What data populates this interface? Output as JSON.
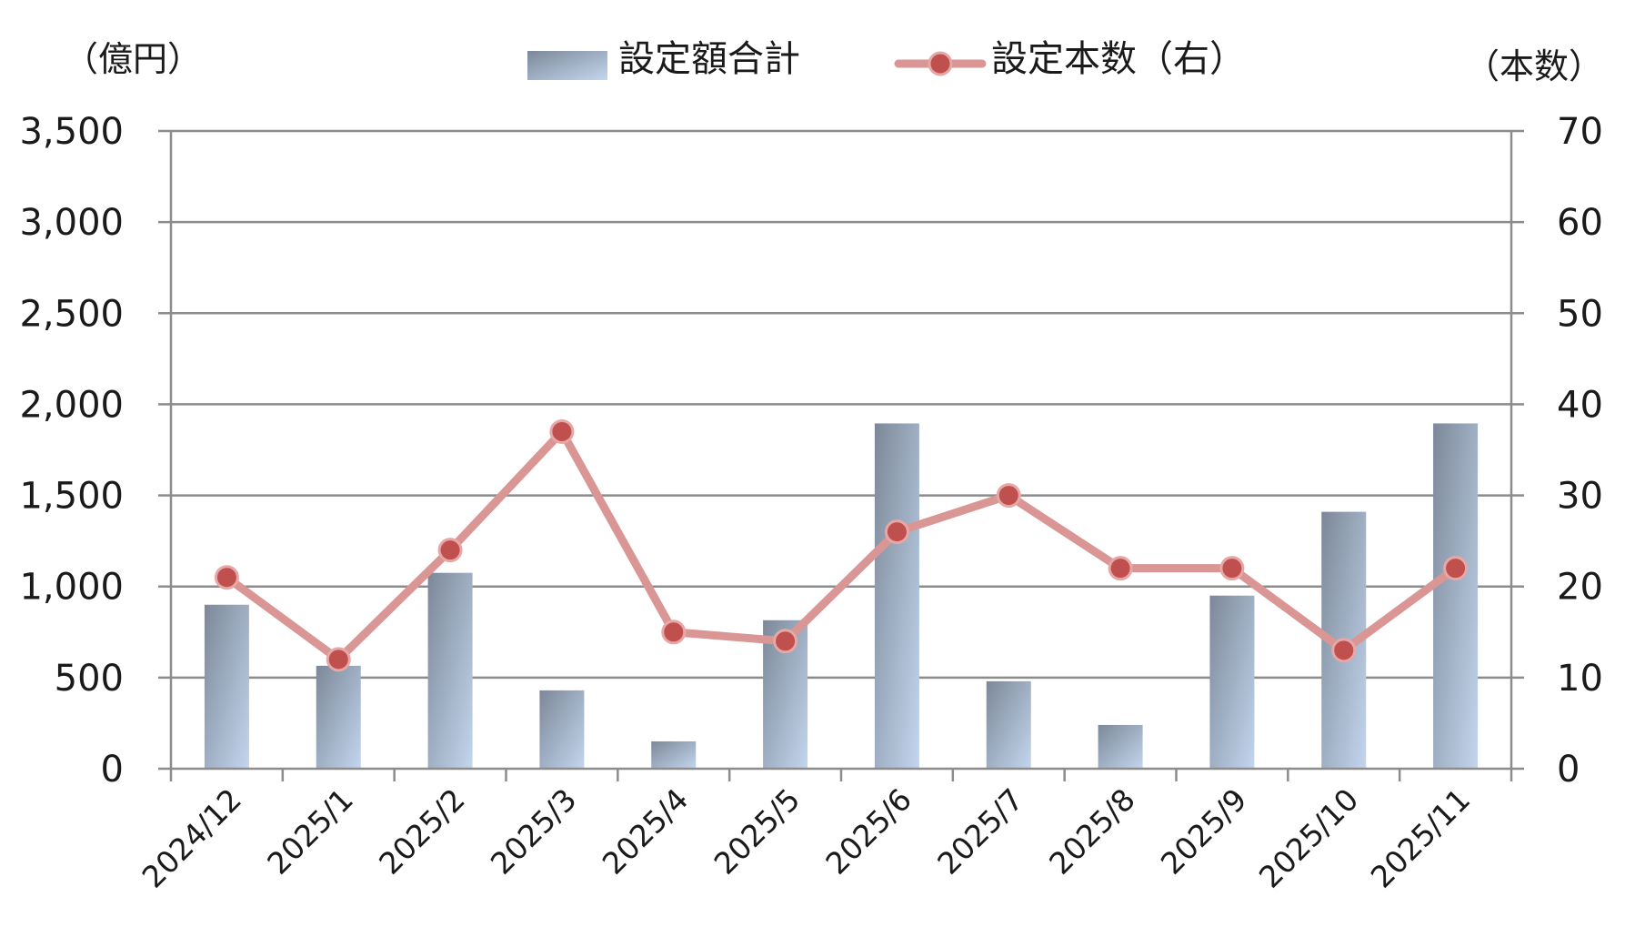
{
  "chart_data": {
    "type": "bar",
    "categories": [
      "2024/12",
      "2025/1",
      "2025/2",
      "2025/3",
      "2025/4",
      "2025/5",
      "2025/6",
      "2025/7",
      "2025/8",
      "2025/9",
      "2025/10",
      "2025/11"
    ],
    "series": [
      {
        "name": "設定額合計",
        "type": "bar",
        "axis": "left",
        "values": [
          900,
          565,
          1075,
          430,
          150,
          815,
          1895,
          480,
          240,
          950,
          1410,
          1895
        ]
      },
      {
        "name": "設定本数（右）",
        "type": "line",
        "axis": "right",
        "values": [
          21,
          12,
          24,
          37,
          15,
          14,
          26,
          30,
          22,
          22,
          13,
          22
        ]
      }
    ],
    "y_left": {
      "unit_label": "（億円）",
      "ylim": [
        0,
        3500
      ],
      "ticks": [
        0,
        500,
        1000,
        1500,
        2000,
        2500,
        3000,
        3500
      ],
      "tick_labels": [
        "0",
        "500",
        "1,000",
        "1,500",
        "2,000",
        "2,500",
        "3,000",
        "3,500"
      ]
    },
    "y_right": {
      "unit_label": "（本数）",
      "ylim": [
        0,
        70
      ],
      "ticks": [
        0,
        10,
        20,
        30,
        40,
        50,
        60,
        70
      ],
      "tick_labels": [
        "0",
        "10",
        "20",
        "30",
        "40",
        "50",
        "60",
        "70"
      ]
    },
    "grid": true,
    "legend_position": "top-center",
    "colors": {
      "bar_dark": "#7c8898",
      "bar_light": "#c3d6ee",
      "line": "#d99694",
      "marker_fill": "#c0504d",
      "marker_stroke": "#e6a8a6"
    }
  }
}
